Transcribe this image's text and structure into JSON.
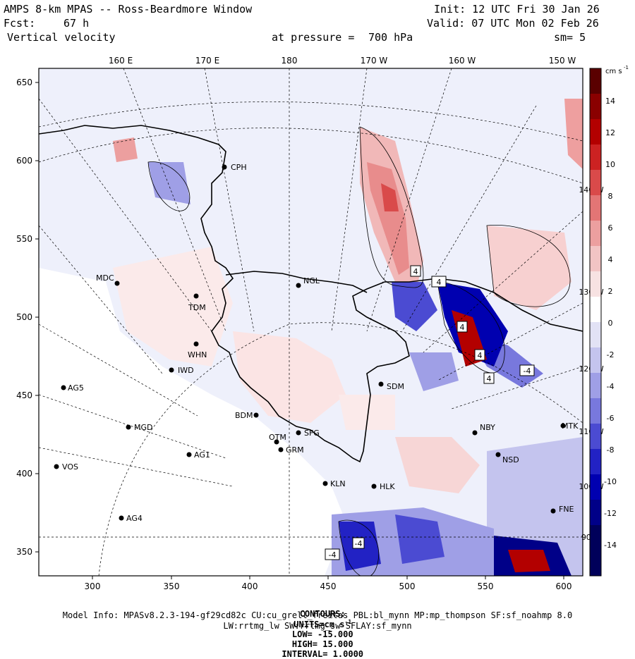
{
  "header": {
    "title": "AMPS 8-km MPAS -- Ross-Beardmore Window",
    "forecast_label": "Fcst:",
    "forecast_value": "67 h",
    "field_name": "Vertical velocity",
    "init": "Init: 12 UTC Fri 30 Jan 26",
    "valid": "Valid: 07 UTC Mon 02 Feb 26",
    "pressure_label": "at pressure =",
    "pressure_value": "700 hPa",
    "smoothing": "sm= 5"
  },
  "map": {
    "top_lon_labels": [
      "160 E",
      "170 E",
      "180",
      "170 W",
      "160 W",
      "150 W"
    ],
    "right_lon_labels": [
      "140 W",
      "130 W",
      "120 W",
      "110 W",
      "100 W",
      "90 W"
    ],
    "x_ticks": [
      "300",
      "350",
      "400",
      "450",
      "500",
      "550",
      "600"
    ],
    "y_ticks": [
      "650",
      "600",
      "550",
      "500",
      "450",
      "400",
      "350"
    ],
    "stations": [
      {
        "id": "CPH",
        "label": "CPH"
      },
      {
        "id": "MDC",
        "label": "MDC"
      },
      {
        "id": "TDM",
        "label": "TDM"
      },
      {
        "id": "NGL",
        "label": "NGL"
      },
      {
        "id": "WHN",
        "label": "WHN"
      },
      {
        "id": "IWD",
        "label": "IWD"
      },
      {
        "id": "AG5",
        "label": "AG5"
      },
      {
        "id": "SDM",
        "label": "SDM"
      },
      {
        "id": "BDM",
        "label": "BDM"
      },
      {
        "id": "MGD",
        "label": "MGD"
      },
      {
        "id": "SFG",
        "label": "SFG"
      },
      {
        "id": "OTM",
        "label": "OTM"
      },
      {
        "id": "GRM",
        "label": "GRM"
      },
      {
        "id": "NBY",
        "label": "NBY"
      },
      {
        "id": "AG1",
        "label": "AG1"
      },
      {
        "id": "NSD",
        "label": "NSD"
      },
      {
        "id": "MTK",
        "label": "MTK"
      },
      {
        "id": "VOS",
        "label": "VOS"
      },
      {
        "id": "KLN",
        "label": "KLN"
      },
      {
        "id": "HLK",
        "label": "HLK"
      },
      {
        "id": "FNE",
        "label": "FNE"
      },
      {
        "id": "AG4",
        "label": "AG4"
      }
    ],
    "contour_labels": [
      "4",
      "4",
      "4",
      "4",
      "-4",
      "-4",
      "-4",
      "4"
    ]
  },
  "colorbar": {
    "units": "cm s",
    "units_exp": "-1",
    "ticks": [
      "14",
      "12",
      "10",
      "8",
      "6",
      "4",
      "2",
      "0",
      "-2",
      "-4",
      "-6",
      "-8",
      "-10",
      "-12",
      "-14"
    ],
    "colors_positive": [
      "#ffffff",
      "#f7e2e2",
      "#f2c4c4",
      "#ec9f9f",
      "#e37575",
      "#d94a4a",
      "#cc2222",
      "#b30000",
      "#8a0000",
      "#5a0000"
    ],
    "colors_negative": [
      "#ffffff",
      "#e2e2f5",
      "#c4c4ee",
      "#9f9fe6",
      "#7878dd",
      "#4b4bd2",
      "#2222c4",
      "#0000b0",
      "#000088",
      "#00005a"
    ]
  },
  "footer": {
    "contours_label": "CONTOURS:",
    "units_label": "UNITS=cm s",
    "units_exp": "-1",
    "low": "LOW= -15.000",
    "high": "HIGH= 15.000",
    "interval": "INTERVAL= 1.0000",
    "model_info": "Model Info: MPASv8.2.3-194-gf29cd82c CU:cu_grell_freitas PBL:bl_mynn MP:mp_thompson SF:sf_noahmp 8.0",
    "model_info2": "LW:rrtmg_lw SW:rrtmg_sw SFLAY:sf_mynn"
  }
}
